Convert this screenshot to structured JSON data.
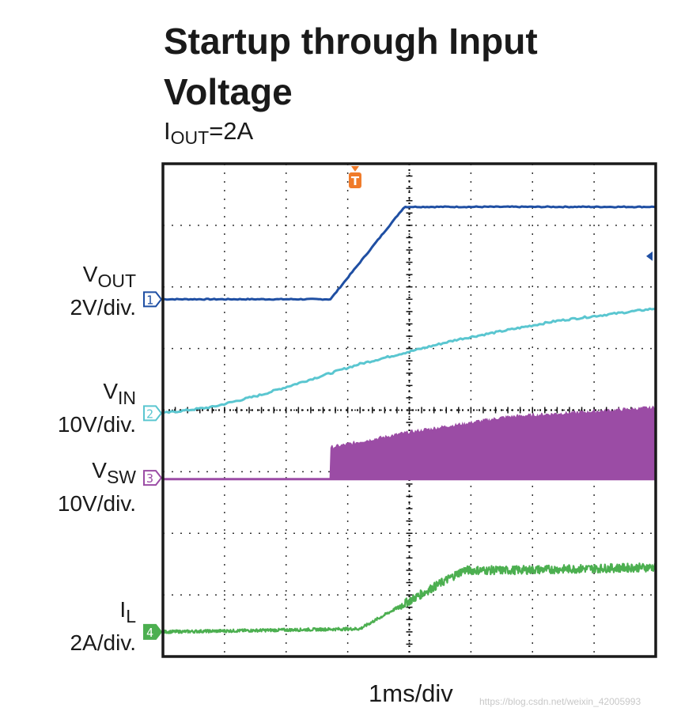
{
  "title": "Startup through Input Voltage",
  "subtitle": {
    "symbol": "I",
    "sub": "OUT",
    "rest": "=2A"
  },
  "xlabel": "1ms/div",
  "watermark": "https://blog.csdn.net/weixin_42005993",
  "channels": [
    {
      "symbol": "V",
      "sub": "OUT",
      "scale": "2V/div.",
      "marker": "1",
      "color": "#1f4fa3"
    },
    {
      "symbol": "V",
      "sub": "IN",
      "scale": "10V/div.",
      "marker": "2",
      "color": "#5ac6d0"
    },
    {
      "symbol": "V",
      "sub": "SW",
      "scale": "10V/div.",
      "marker": "3",
      "color": "#9b4ca5"
    },
    {
      "symbol": "I",
      "sub": "L",
      "scale": "2A/div.",
      "marker": "4",
      "color": "#4caf50"
    }
  ],
  "trigger": {
    "marker": "T",
    "color": "#f07b2a"
  },
  "chart_data": {
    "type": "line",
    "title": "Startup through Input Voltage",
    "subtitle": "IOUT=2A",
    "xlabel": "1ms/div",
    "x_unit": "divisions (1ms/div)",
    "y_unit": "divisions",
    "xlim": [
      0,
      10
    ],
    "ylim": [
      0,
      8
    ],
    "grid": true,
    "series": [
      {
        "name": "VOUT",
        "scale": "2V/div.",
        "x": [
          0,
          3.4,
          4.9,
          10
        ],
        "y": [
          5.8,
          5.8,
          7.3,
          7.3
        ]
      },
      {
        "name": "VIN",
        "scale": "10V/div.",
        "x": [
          0,
          1,
          2,
          3,
          4,
          5,
          6,
          7,
          8,
          9,
          10
        ],
        "y": [
          3.95,
          4.05,
          4.25,
          4.5,
          4.75,
          4.95,
          5.15,
          5.3,
          5.45,
          5.55,
          5.65
        ]
      },
      {
        "name": "VSW",
        "scale": "10V/div.",
        "x": [
          0,
          3.4,
          3.4,
          5,
          7,
          10
        ],
        "y_low": [
          2.9,
          2.9,
          2.9,
          2.9,
          2.9,
          2.9
        ],
        "y_high": [
          2.9,
          2.9,
          3.4,
          3.65,
          3.9,
          4.05
        ]
      },
      {
        "name": "IL",
        "scale": "2A/div.",
        "x": [
          0,
          4,
          6.1,
          7,
          10
        ],
        "y": [
          0.4,
          0.45,
          1.4,
          1.4,
          1.45
        ]
      }
    ]
  }
}
